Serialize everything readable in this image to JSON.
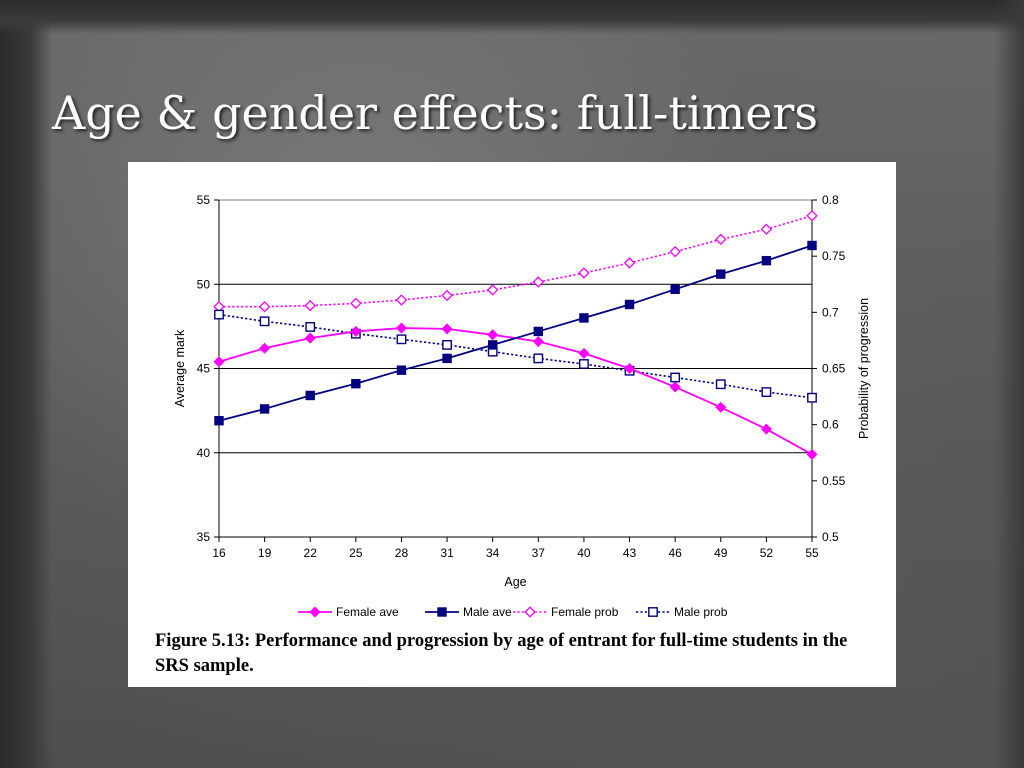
{
  "slide": {
    "title": "Age & gender effects: full-timers"
  },
  "figure": {
    "caption": "Figure 5.13: Performance and progression by age of entrant for full-time students in the SRS sample."
  },
  "colors": {
    "female": "#ff00ff",
    "male": "#000080"
  },
  "chart_data": {
    "type": "line",
    "title": "",
    "xlabel": "Age",
    "ylabel": "Average mark",
    "y2label": "Probability of progression",
    "x": [
      16,
      19,
      22,
      25,
      28,
      31,
      34,
      37,
      40,
      43,
      46,
      49,
      52,
      55
    ],
    "xlim": [
      16,
      55
    ],
    "ylim": [
      35,
      55
    ],
    "y2lim": [
      0.5,
      0.8
    ],
    "yticks": [
      35,
      40,
      45,
      50,
      55
    ],
    "y2ticks": [
      "0.5",
      "0.55",
      "0.6",
      "0.65",
      "0.7",
      "0.75",
      "0.8"
    ],
    "grid": "horizontal major lines on the primary axis",
    "legend_position": "bottom",
    "series": [
      {
        "name": "Female ave",
        "axis": "left",
        "style": "solid",
        "marker": "filled-diamond",
        "color": "#ff00ff",
        "values": [
          45.4,
          46.2,
          46.8,
          47.2,
          47.4,
          47.35,
          47.0,
          46.6,
          45.9,
          45.0,
          43.9,
          42.7,
          41.4,
          39.9
        ]
      },
      {
        "name": "Male ave",
        "axis": "left",
        "style": "solid",
        "marker": "filled-square",
        "color": "#000080",
        "values": [
          41.9,
          42.6,
          43.4,
          44.1,
          44.9,
          45.6,
          46.4,
          47.2,
          48.0,
          48.8,
          49.7,
          50.6,
          51.4,
          52.3
        ]
      },
      {
        "name": "Female prob",
        "axis": "right",
        "style": "dotted",
        "marker": "open-diamond",
        "color": "#ff00ff",
        "values": [
          0.705,
          0.705,
          0.706,
          0.708,
          0.711,
          0.715,
          0.72,
          0.727,
          0.735,
          0.744,
          0.754,
          0.765,
          0.774,
          0.786
        ]
      },
      {
        "name": "Male prob",
        "axis": "right",
        "style": "dotted",
        "marker": "open-square",
        "color": "#000080",
        "values": [
          0.698,
          0.692,
          0.687,
          0.681,
          0.676,
          0.671,
          0.665,
          0.659,
          0.654,
          0.648,
          0.642,
          0.636,
          0.629,
          0.624
        ]
      }
    ]
  }
}
